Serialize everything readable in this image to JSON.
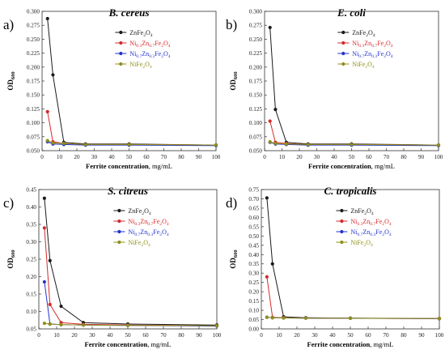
{
  "colors": {
    "ZnFe2O4": "#1a1a1a",
    "Ni0.3Zn0.7Fe2O4": "#d62a2a",
    "Ni0.7Zn0.3Fe2O4": "#2233cc",
    "NiFe2O4": "#8f8f1a",
    "axis": "#333333"
  },
  "chart_data": [
    {
      "type": "line",
      "panel_letter": "a)",
      "title": "B. cereus",
      "xlabel": "Ferrite concentration, mg/mL",
      "ylabel": "OD600",
      "xlim": [
        0,
        100
      ],
      "ylim": [
        0.05,
        0.3
      ],
      "xticks": [
        "0",
        "10",
        "20",
        "30",
        "40",
        "50",
        "60",
        "70",
        "80",
        "90",
        "100"
      ],
      "yticks": [
        "0.050",
        "0.075",
        "0.100",
        "0.125",
        "0.150",
        "0.175",
        "0.200",
        "0.225",
        "0.250",
        "0.275",
        "0.300"
      ],
      "x": [
        3.125,
        6.25,
        12.5,
        25,
        50,
        100
      ],
      "legend_position": "top-right",
      "series": [
        {
          "name": "ZnFe2O4",
          "values": [
            0.287,
            0.186,
            0.065,
            0.062,
            0.062,
            0.06
          ]
        },
        {
          "name": "Ni0.3Zn0.7Fe2O4",
          "values": [
            0.12,
            0.066,
            0.063,
            0.061,
            0.061,
            0.06
          ]
        },
        {
          "name": "Ni0.7Zn0.3Fe2O4",
          "values": [
            0.066,
            0.062,
            0.061,
            0.06,
            0.06,
            0.059
          ]
        },
        {
          "name": "NiFe2O4",
          "values": [
            0.068,
            0.064,
            0.063,
            0.061,
            0.061,
            0.06
          ]
        }
      ]
    },
    {
      "type": "line",
      "panel_letter": "b)",
      "title": "E. coli",
      "xlabel": "Ferrite concentration, mg/mL",
      "ylabel": "OD600",
      "xlim": [
        0,
        100
      ],
      "ylim": [
        0.05,
        0.3
      ],
      "xticks": [
        "0",
        "10",
        "20",
        "30",
        "40",
        "50",
        "60",
        "70",
        "80",
        "90",
        "100"
      ],
      "yticks": [
        "0.050",
        "0.075",
        "0.100",
        "0.125",
        "0.150",
        "0.175",
        "0.200",
        "0.225",
        "0.250",
        "0.275",
        "0.300"
      ],
      "x": [
        3.125,
        6.25,
        12.5,
        25,
        50,
        100
      ],
      "legend_position": "top-right",
      "series": [
        {
          "name": "ZnFe2O4",
          "values": [
            0.271,
            0.124,
            0.065,
            0.062,
            0.062,
            0.06
          ]
        },
        {
          "name": "Ni0.3Zn0.7Fe2O4",
          "values": [
            0.103,
            0.065,
            0.063,
            0.061,
            0.061,
            0.06
          ]
        },
        {
          "name": "Ni0.7Zn0.3Fe2O4",
          "values": [
            0.065,
            0.062,
            0.061,
            0.06,
            0.06,
            0.059
          ]
        },
        {
          "name": "NiFe2O4",
          "values": [
            0.066,
            0.063,
            0.062,
            0.061,
            0.061,
            0.06
          ]
        }
      ]
    },
    {
      "type": "line",
      "panel_letter": "c)",
      "title": "S. citreus",
      "xlabel": "Ferrite concentration, mg/mL",
      "ylabel": "OD600",
      "xlim": [
        0,
        100
      ],
      "ylim": [
        0.05,
        0.45
      ],
      "xticks": [
        "0",
        "10",
        "20",
        "30",
        "40",
        "50",
        "60",
        "70",
        "80",
        "90",
        "100"
      ],
      "yticks": [
        "0.05",
        "0.10",
        "0.15",
        "0.20",
        "0.25",
        "0.30",
        "0.35",
        "0.40",
        "0.45"
      ],
      "x": [
        3.125,
        6.25,
        12.5,
        25,
        50,
        100
      ],
      "legend_position": "top-right",
      "series": [
        {
          "name": "ZnFe2O4",
          "values": [
            0.425,
            0.246,
            0.115,
            0.068,
            0.064,
            0.061
          ]
        },
        {
          "name": "Ni0.3Zn0.7Fe2O4",
          "values": [
            0.34,
            0.12,
            0.068,
            0.063,
            0.061,
            0.059
          ]
        },
        {
          "name": "Ni0.7Zn0.3Fe2O4",
          "values": [
            0.185,
            0.064,
            0.062,
            0.061,
            0.06,
            0.058
          ]
        },
        {
          "name": "NiFe2O4",
          "values": [
            0.066,
            0.064,
            0.062,
            0.061,
            0.06,
            0.059
          ]
        }
      ]
    },
    {
      "type": "line",
      "panel_letter": "d)",
      "title": "C. tropicalis",
      "xlabel": "Ferrite concentration, mg/mL",
      "ylabel": "OD600",
      "xlim": [
        0,
        100
      ],
      "ylim": [
        0.0,
        0.75
      ],
      "xticks": [
        "0",
        "10",
        "20",
        "30",
        "40",
        "50",
        "60",
        "70",
        "80",
        "90",
        "100"
      ],
      "yticks": [
        "0.00",
        "0.05",
        "0.10",
        "0.15",
        "0.20",
        "0.25",
        "0.30",
        "0.35",
        "0.40",
        "0.45",
        "0.50",
        "0.55",
        "0.60",
        "0.65",
        "0.70",
        "0.75"
      ],
      "x": [
        3.125,
        6.25,
        12.5,
        25,
        50,
        100
      ],
      "legend_position": "top-right",
      "series": [
        {
          "name": "ZnFe2O4",
          "values": [
            0.705,
            0.35,
            0.065,
            0.06,
            0.058,
            0.056
          ]
        },
        {
          "name": "Ni0.3Zn0.7Fe2O4",
          "values": [
            0.28,
            0.062,
            0.06,
            0.058,
            0.057,
            0.055
          ]
        },
        {
          "name": "Ni0.7Zn0.3Fe2O4",
          "values": [
            0.063,
            0.06,
            0.059,
            0.058,
            0.057,
            0.055
          ]
        },
        {
          "name": "NiFe2O4",
          "values": [
            0.062,
            0.06,
            0.059,
            0.058,
            0.057,
            0.056
          ]
        }
      ]
    }
  ]
}
